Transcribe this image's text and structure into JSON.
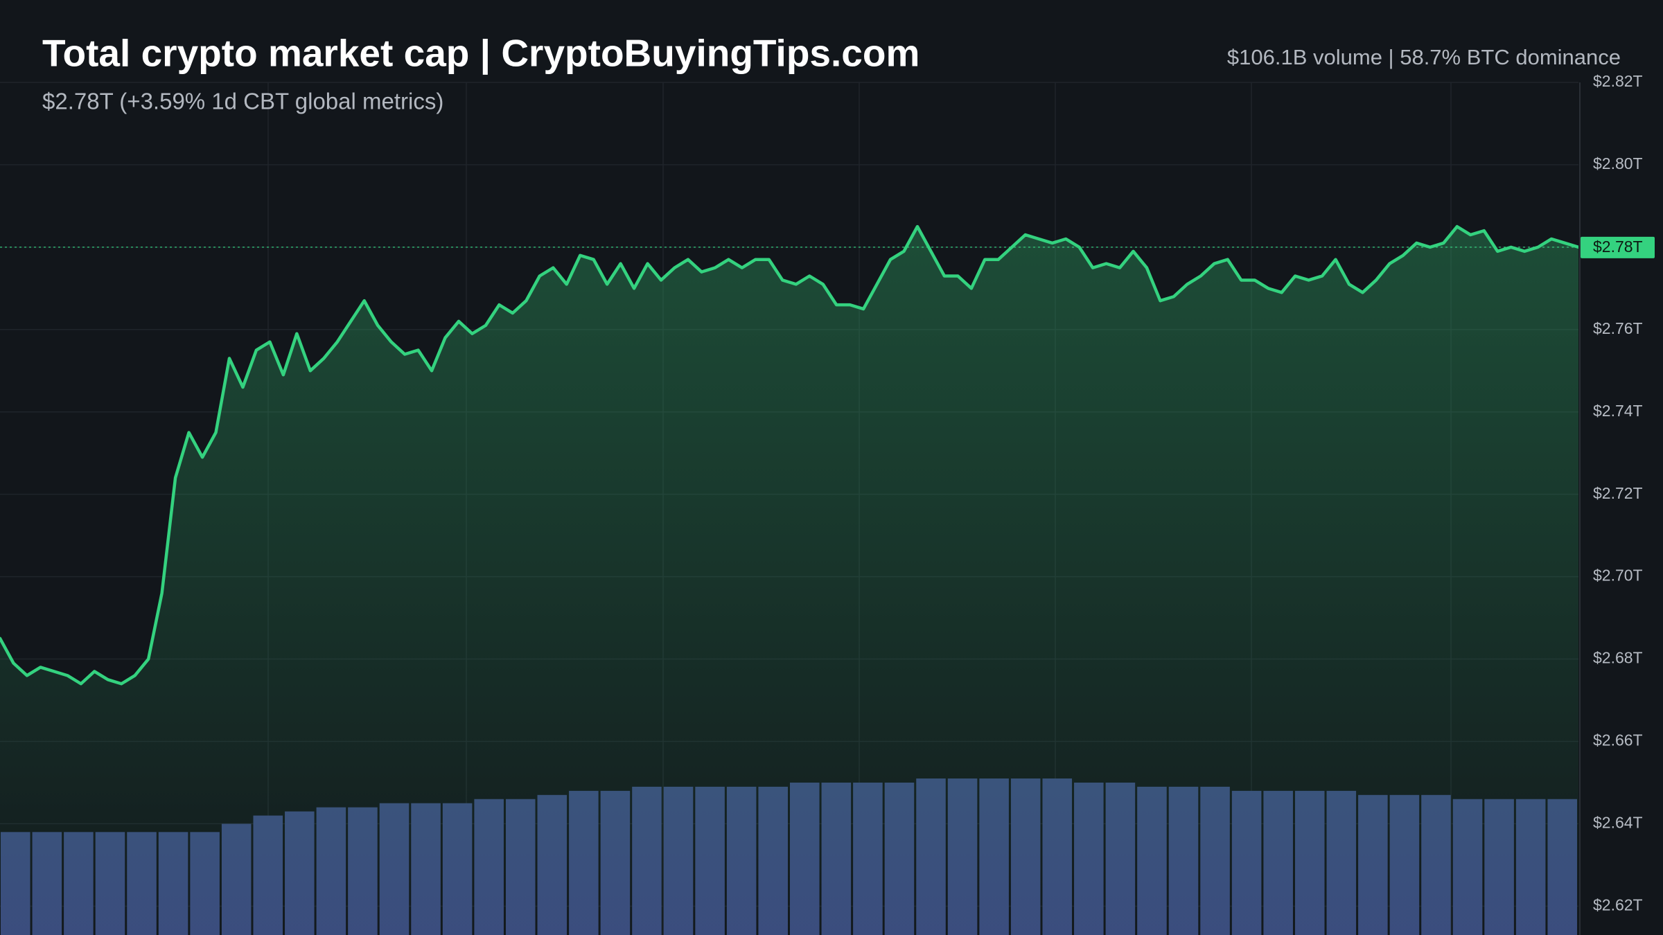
{
  "chart_data": {
    "type": "area",
    "title": "Total crypto market cap | CryptoBuyingTips.com",
    "subtitle": "$2.78T (+3.59% 1d CBT global metrics)",
    "header_stats": "$106.1B volume | 58.7% BTC dominance",
    "color": "#34d27f",
    "values": [
      2.685,
      2.679,
      2.676,
      2.678,
      2.677,
      2.676,
      2.674,
      2.677,
      2.675,
      2.674,
      2.676,
      2.68,
      2.696,
      2.724,
      2.735,
      2.729,
      2.735,
      2.753,
      2.746,
      2.755,
      2.757,
      2.749,
      2.759,
      2.75,
      2.753,
      2.757,
      2.762,
      2.767,
      2.761,
      2.757,
      2.754,
      2.755,
      2.75,
      2.758,
      2.762,
      2.759,
      2.761,
      2.766,
      2.764,
      2.767,
      2.773,
      2.775,
      2.771,
      2.778,
      2.777,
      2.771,
      2.776,
      2.77,
      2.776,
      2.772,
      2.775,
      2.777,
      2.774,
      2.775,
      2.777,
      2.775,
      2.777,
      2.777,
      2.772,
      2.771,
      2.773,
      2.771,
      2.766,
      2.766,
      2.765,
      2.771,
      2.777,
      2.779,
      2.785,
      2.779,
      2.773,
      2.773,
      2.77,
      2.777,
      2.777,
      2.78,
      2.783,
      2.782,
      2.781,
      2.782,
      2.78,
      2.775,
      2.776,
      2.775,
      2.779,
      2.775,
      2.767,
      2.768,
      2.771,
      2.773,
      2.776,
      2.777,
      2.772,
      2.772,
      2.77,
      2.769,
      2.773,
      2.772,
      2.773,
      2.777,
      2.771,
      2.769,
      2.772,
      2.776,
      2.778,
      2.781,
      2.78,
      2.781,
      2.785,
      2.783,
      2.784,
      2.779,
      2.78,
      2.779,
      2.78,
      2.782,
      2.781,
      2.78
    ],
    "volume": {
      "color": "#3b4b7e",
      "values": [
        2.638,
        2.638,
        2.638,
        2.638,
        2.638,
        2.638,
        2.638,
        2.64,
        2.642,
        2.643,
        2.644,
        2.644,
        2.645,
        2.645,
        2.645,
        2.646,
        2.646,
        2.647,
        2.648,
        2.648,
        2.649,
        2.649,
        2.649,
        2.649,
        2.649,
        2.65,
        2.65,
        2.65,
        2.65,
        2.651,
        2.651,
        2.651,
        2.651,
        2.651,
        2.65,
        2.65,
        2.649,
        2.649,
        2.649,
        2.648,
        2.648,
        2.648,
        2.648,
        2.647,
        2.647,
        2.647,
        2.646,
        2.646,
        2.646,
        2.646
      ]
    },
    "last_price": {
      "value": 2.78,
      "label": "$2.78T"
    },
    "ylim": [
      2.613,
      2.82
    ],
    "yticks": [
      {
        "value": 2.62,
        "label": "$2.62T"
      },
      {
        "value": 2.64,
        "label": "$2.64T"
      },
      {
        "value": 2.66,
        "label": "$2.66T"
      },
      {
        "value": 2.68,
        "label": "$2.68T"
      },
      {
        "value": 2.7,
        "label": "$2.70T"
      },
      {
        "value": 2.72,
        "label": "$2.72T"
      },
      {
        "value": 2.74,
        "label": "$2.74T"
      },
      {
        "value": 2.76,
        "label": "$2.76T"
      },
      {
        "value": 2.78,
        "label": "$2.78T"
      },
      {
        "value": 2.8,
        "label": "$2.80T"
      },
      {
        "value": 2.82,
        "label": "$2.82T"
      }
    ],
    "grid": true
  }
}
